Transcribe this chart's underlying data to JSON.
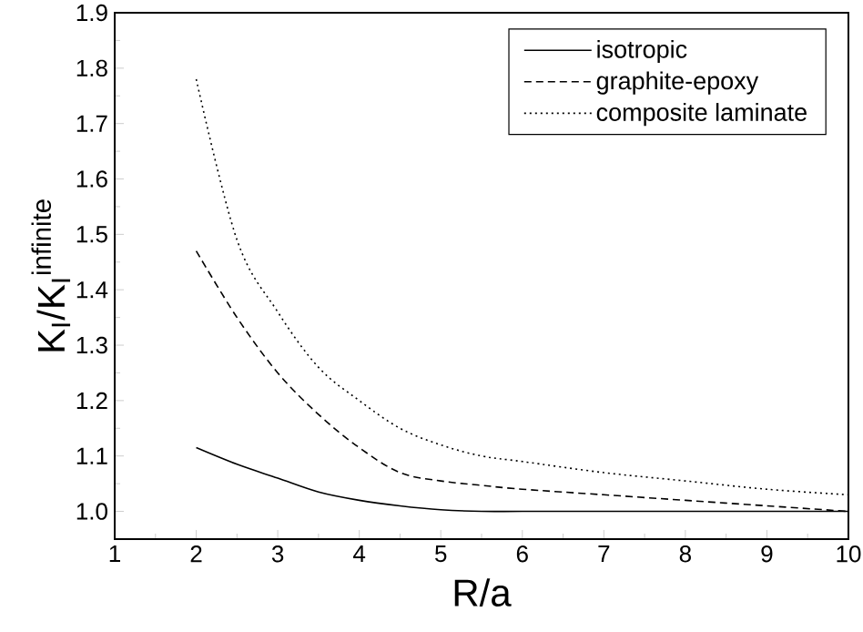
{
  "chart_data": {
    "type": "line",
    "xlabel": "R/a",
    "ylabel": "K$_{I}$/K$_{I}$$^{infinite}$",
    "xlim": [
      1,
      10
    ],
    "ylim": [
      0.95,
      1.9
    ],
    "xticks": [
      1,
      2,
      3,
      4,
      5,
      6,
      7,
      8,
      9,
      10
    ],
    "yticks": [
      {
        "value": 1.0,
        "label": "1.0"
      },
      1.1,
      1.2,
      1.3,
      1.4,
      1.5,
      1.6,
      1.7,
      1.8,
      1.9
    ],
    "x": [
      2,
      2.5,
      3,
      3.5,
      4,
      4.5,
      5,
      5.5,
      6,
      7,
      8,
      9,
      10
    ],
    "legend": "top right",
    "grid": false,
    "marker": "none",
    "series": [
      {
        "name": "isotropic",
        "color": "#000000",
        "line_style": "solid",
        "values": [
          1.115,
          1.085,
          1.06,
          1.035,
          1.02,
          1.01,
          1.003,
          1.0,
          1.0,
          1.0,
          1.0,
          1.0,
          1.0
        ]
      },
      {
        "name": "graphite-epoxy",
        "color": "#000000",
        "line_style": "dashed",
        "values": [
          1.47,
          1.35,
          1.25,
          1.175,
          1.115,
          1.07,
          1.055,
          1.047,
          1.04,
          1.03,
          1.02,
          1.01,
          1.0
        ]
      },
      {
        "name": "composite laminate",
        "color": "#000000",
        "line_style": "dotted",
        "values": [
          1.78,
          1.49,
          1.36,
          1.26,
          1.2,
          1.15,
          1.12,
          1.1,
          1.09,
          1.07,
          1.055,
          1.04,
          1.03
        ]
      }
    ]
  }
}
